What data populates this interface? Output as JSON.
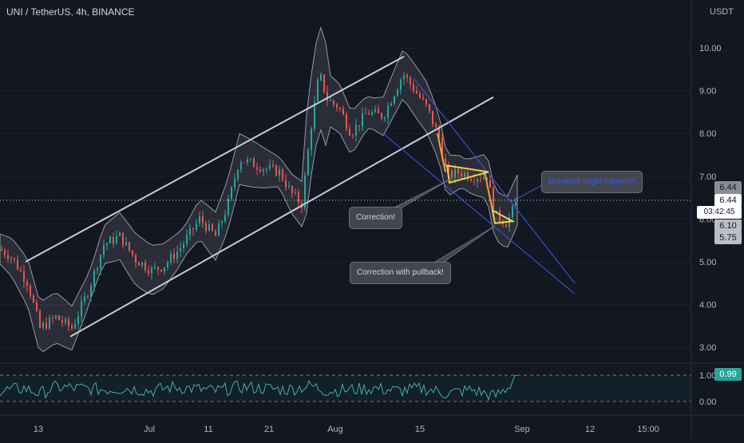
{
  "chart_data": {
    "type": "candlestick",
    "symbol": "UNI / TetherUS, 4h, BINANCE",
    "currency": "USDT",
    "y_ticks": [
      "10.00",
      "9.00",
      "8.00",
      "7.00",
      "6.00",
      "5.00",
      "4.00",
      "3.00"
    ],
    "ylim": [
      2.6,
      10.9
    ],
    "x_ticks": [
      "13",
      "Jul",
      "11",
      "21",
      "Aug",
      "15",
      "Sep",
      "12",
      "15:00"
    ],
    "price_tags": {
      "a": "6.44",
      "last": "6.44",
      "countdown": "03:42:45",
      "b": "6.10",
      "c": "5.75"
    },
    "annotations": [
      "Correction!",
      "Correction with pullback!",
      "Breakout might happen!!"
    ],
    "oscillator": {
      "last": "0.99",
      "ticks": [
        "1.00",
        "0.00"
      ],
      "ylim": [
        -0.25,
        1.2
      ]
    },
    "price_path": [
      [
        0,
        5.3
      ],
      [
        15,
        5.1
      ],
      [
        35,
        4.5
      ],
      [
        50,
        3.45
      ],
      [
        70,
        3.7
      ],
      [
        90,
        3.45
      ],
      [
        110,
        4.3
      ],
      [
        130,
        5.4
      ],
      [
        150,
        5.6
      ],
      [
        170,
        5.05
      ],
      [
        190,
        4.8
      ],
      [
        205,
        4.9
      ],
      [
        225,
        5.3
      ],
      [
        250,
        6.0
      ],
      [
        270,
        5.6
      ],
      [
        285,
        6.3
      ],
      [
        300,
        7.4
      ],
      [
        315,
        7.3
      ],
      [
        330,
        7.2
      ],
      [
        350,
        7.1
      ],
      [
        365,
        6.6
      ],
      [
        378,
        6.35
      ],
      [
        390,
        8.2
      ],
      [
        400,
        9.4
      ],
      [
        410,
        8.8
      ],
      [
        425,
        8.6
      ],
      [
        440,
        8.0
      ],
      [
        460,
        8.5
      ],
      [
        480,
        8.4
      ],
      [
        495,
        9.0
      ],
      [
        505,
        9.4
      ],
      [
        520,
        9.0
      ],
      [
        535,
        8.6
      ],
      [
        550,
        7.9
      ],
      [
        560,
        7.0
      ],
      [
        575,
        7.1
      ],
      [
        590,
        7.0
      ],
      [
        610,
        7.0
      ],
      [
        620,
        6.1
      ],
      [
        635,
        5.9
      ],
      [
        648,
        6.44
      ]
    ],
    "oscillator_path": [
      [
        0,
        0.4
      ],
      [
        30,
        0.5
      ],
      [
        50,
        0.3
      ],
      [
        70,
        0.55
      ],
      [
        100,
        0.5
      ],
      [
        130,
        0.45
      ],
      [
        160,
        0.5
      ],
      [
        190,
        0.4
      ],
      [
        215,
        0.55
      ],
      [
        240,
        0.5
      ],
      [
        270,
        0.4
      ],
      [
        300,
        0.55
      ],
      [
        330,
        0.5
      ],
      [
        360,
        0.45
      ],
      [
        390,
        0.6
      ],
      [
        410,
        0.4
      ],
      [
        440,
        0.45
      ],
      [
        470,
        0.5
      ],
      [
        500,
        0.4
      ],
      [
        530,
        0.5
      ],
      [
        560,
        0.3
      ],
      [
        590,
        0.45
      ],
      [
        620,
        0.2
      ],
      [
        635,
        0.5
      ],
      [
        648,
        0.99
      ]
    ]
  },
  "colors": {
    "bg": "#131722",
    "up": "#26a69a",
    "down": "#ef5350",
    "band": "#9598a1",
    "channel": "#c9cbd1",
    "wedge": "#3d5be0",
    "orange": "#f5a623",
    "yellow": "#f0d24a",
    "osc": "#3fb39a"
  }
}
